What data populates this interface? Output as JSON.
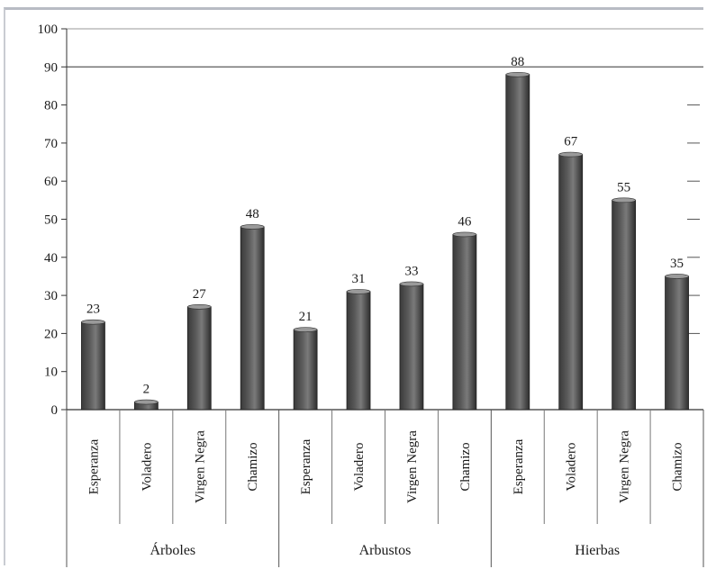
{
  "chart_data": {
    "type": "bar",
    "ylim": [
      0,
      100
    ],
    "yticks": [
      0,
      10,
      20,
      30,
      40,
      50,
      60,
      70,
      80,
      90,
      100
    ],
    "grid": false,
    "groups": [
      {
        "label": "Árboles",
        "categories": [
          "Esperanza",
          "Voladero",
          "Virgen Negra",
          "Chamizo"
        ],
        "values": [
          23,
          2,
          27,
          48
        ]
      },
      {
        "label": "Arbustos",
        "categories": [
          "Esperanza",
          "Voladero",
          "Virgen Negra",
          "Chamizo"
        ],
        "values": [
          21,
          31,
          33,
          46
        ]
      },
      {
        "label": "Hierbas",
        "categories": [
          "Esperanza",
          "Voladero",
          "Virgen Negra",
          "Chamizo"
        ],
        "values": [
          88,
          67,
          55,
          35
        ]
      }
    ],
    "bar_color": "#5a5a5a"
  }
}
